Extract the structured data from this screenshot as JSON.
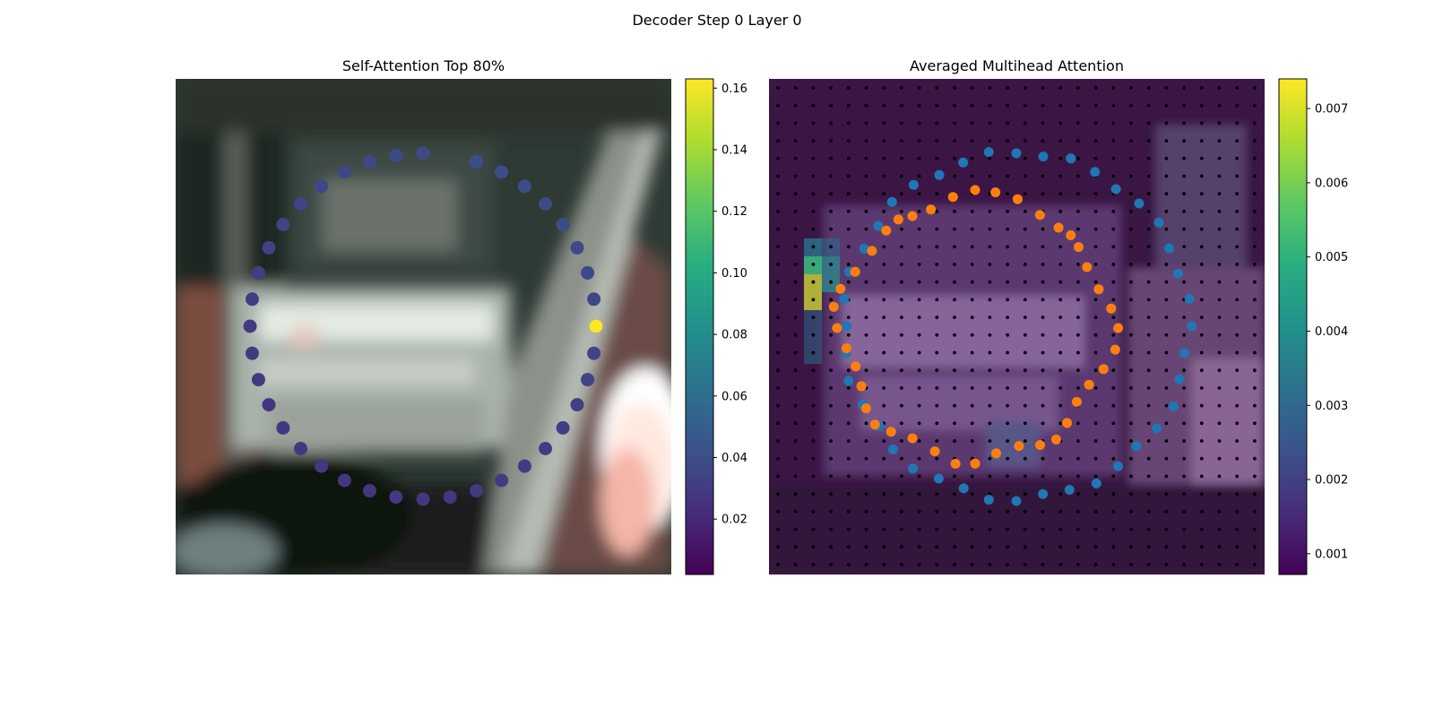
{
  "figure": {
    "suptitle": "Decoder Step 0 Layer 0"
  },
  "chart_data": [
    {
      "type": "scatter",
      "title": "Self-Attention Top 80%",
      "background": "blurred photo of a vehicle interior / window scene",
      "colormap": "viridis",
      "colorbar": {
        "min": 0.002,
        "max": 0.163,
        "ticks": [
          "0.02",
          "0.04",
          "0.06",
          "0.08",
          "0.10",
          "0.12",
          "0.14",
          "0.16"
        ]
      },
      "points_count": 40,
      "point_values": [
        0.038,
        0.038,
        0.037,
        0.037,
        0.036,
        0.035,
        0.034,
        0.033,
        0.032,
        0.031,
        0.03,
        0.029,
        0.029,
        0.028,
        0.028,
        0.028,
        0.028,
        0.028,
        0.028,
        0.028,
        0.028,
        0.028,
        0.029,
        0.029,
        0.03,
        0.031,
        0.032,
        0.033,
        0.034,
        0.035,
        0.036,
        0.037,
        0.038,
        0.038,
        0.039,
        0.039,
        0.04,
        0.04,
        0.04,
        0.163
      ]
    },
    {
      "type": "scatter",
      "title": "Averaged Multihead Attention",
      "background": "attention heatmap overlaid on the same photo",
      "colormap": "viridis",
      "colorbar": {
        "min": 0.00072,
        "max": 0.0074,
        "ticks": [
          "0.001",
          "0.002",
          "0.003",
          "0.004",
          "0.005",
          "0.006",
          "0.007"
        ]
      },
      "series": [
        {
          "color": "#1f77b4",
          "role": "outer ring",
          "points": 40
        },
        {
          "color": "#ff7f0e",
          "role": "inner ring",
          "points": 40
        },
        {
          "color": "#000000",
          "role": "sampling grid",
          "rows": 28,
          "cols": 28
        }
      ]
    }
  ]
}
